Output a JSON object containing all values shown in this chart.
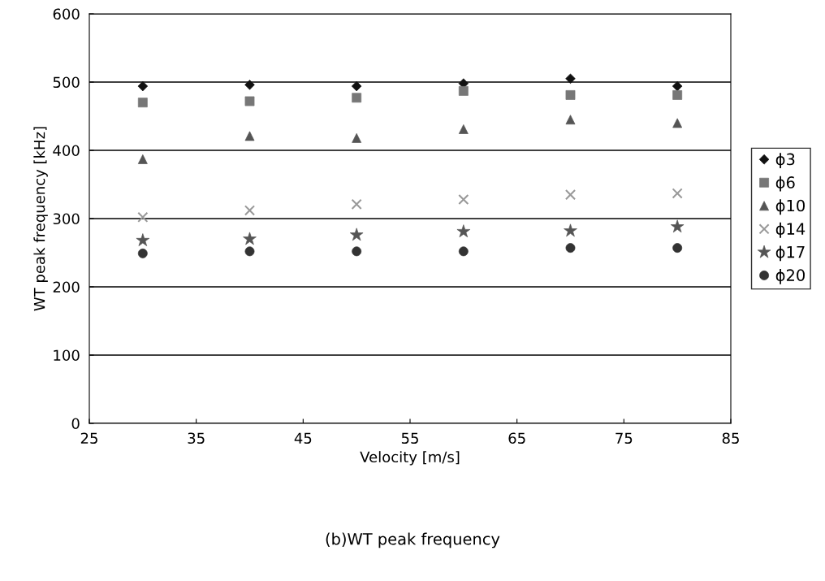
{
  "chart_data": {
    "type": "scatter",
    "xlabel": "Velocity [m/s]",
    "ylabel": "WT peak frequency [kHz]",
    "x": [
      30,
      40,
      50,
      60,
      70,
      80
    ],
    "series": [
      {
        "name": "ϕ3",
        "color": "#111111",
        "marker": "diamond",
        "values": [
          494,
          496,
          494,
          498,
          505,
          494
        ]
      },
      {
        "name": "ϕ6",
        "color": "#777777",
        "marker": "square",
        "values": [
          470,
          472,
          477,
          487,
          481,
          481
        ]
      },
      {
        "name": "ϕ10",
        "color": "#555555",
        "marker": "triangle",
        "values": [
          387,
          421,
          418,
          431,
          445,
          440
        ]
      },
      {
        "name": "ϕ14",
        "color": "#999999",
        "marker": "cross",
        "values": [
          302,
          312,
          321,
          328,
          335,
          337
        ]
      },
      {
        "name": "ϕ17",
        "color": "#555555",
        "marker": "star",
        "values": [
          268,
          270,
          276,
          281,
          282,
          288
        ]
      },
      {
        "name": "ϕ20",
        "color": "#333333",
        "marker": "circle",
        "values": [
          249,
          252,
          252,
          252,
          257,
          257
        ]
      }
    ],
    "xlim": [
      25,
      85
    ],
    "xticks": [
      25,
      35,
      45,
      55,
      65,
      75,
      85
    ],
    "ylim": [
      0,
      600
    ],
    "yticks": [
      0,
      100,
      200,
      300,
      400,
      500,
      600
    ],
    "grid": "y",
    "legend": "right",
    "annotations": [
      "(b)WT peak frequency"
    ]
  }
}
